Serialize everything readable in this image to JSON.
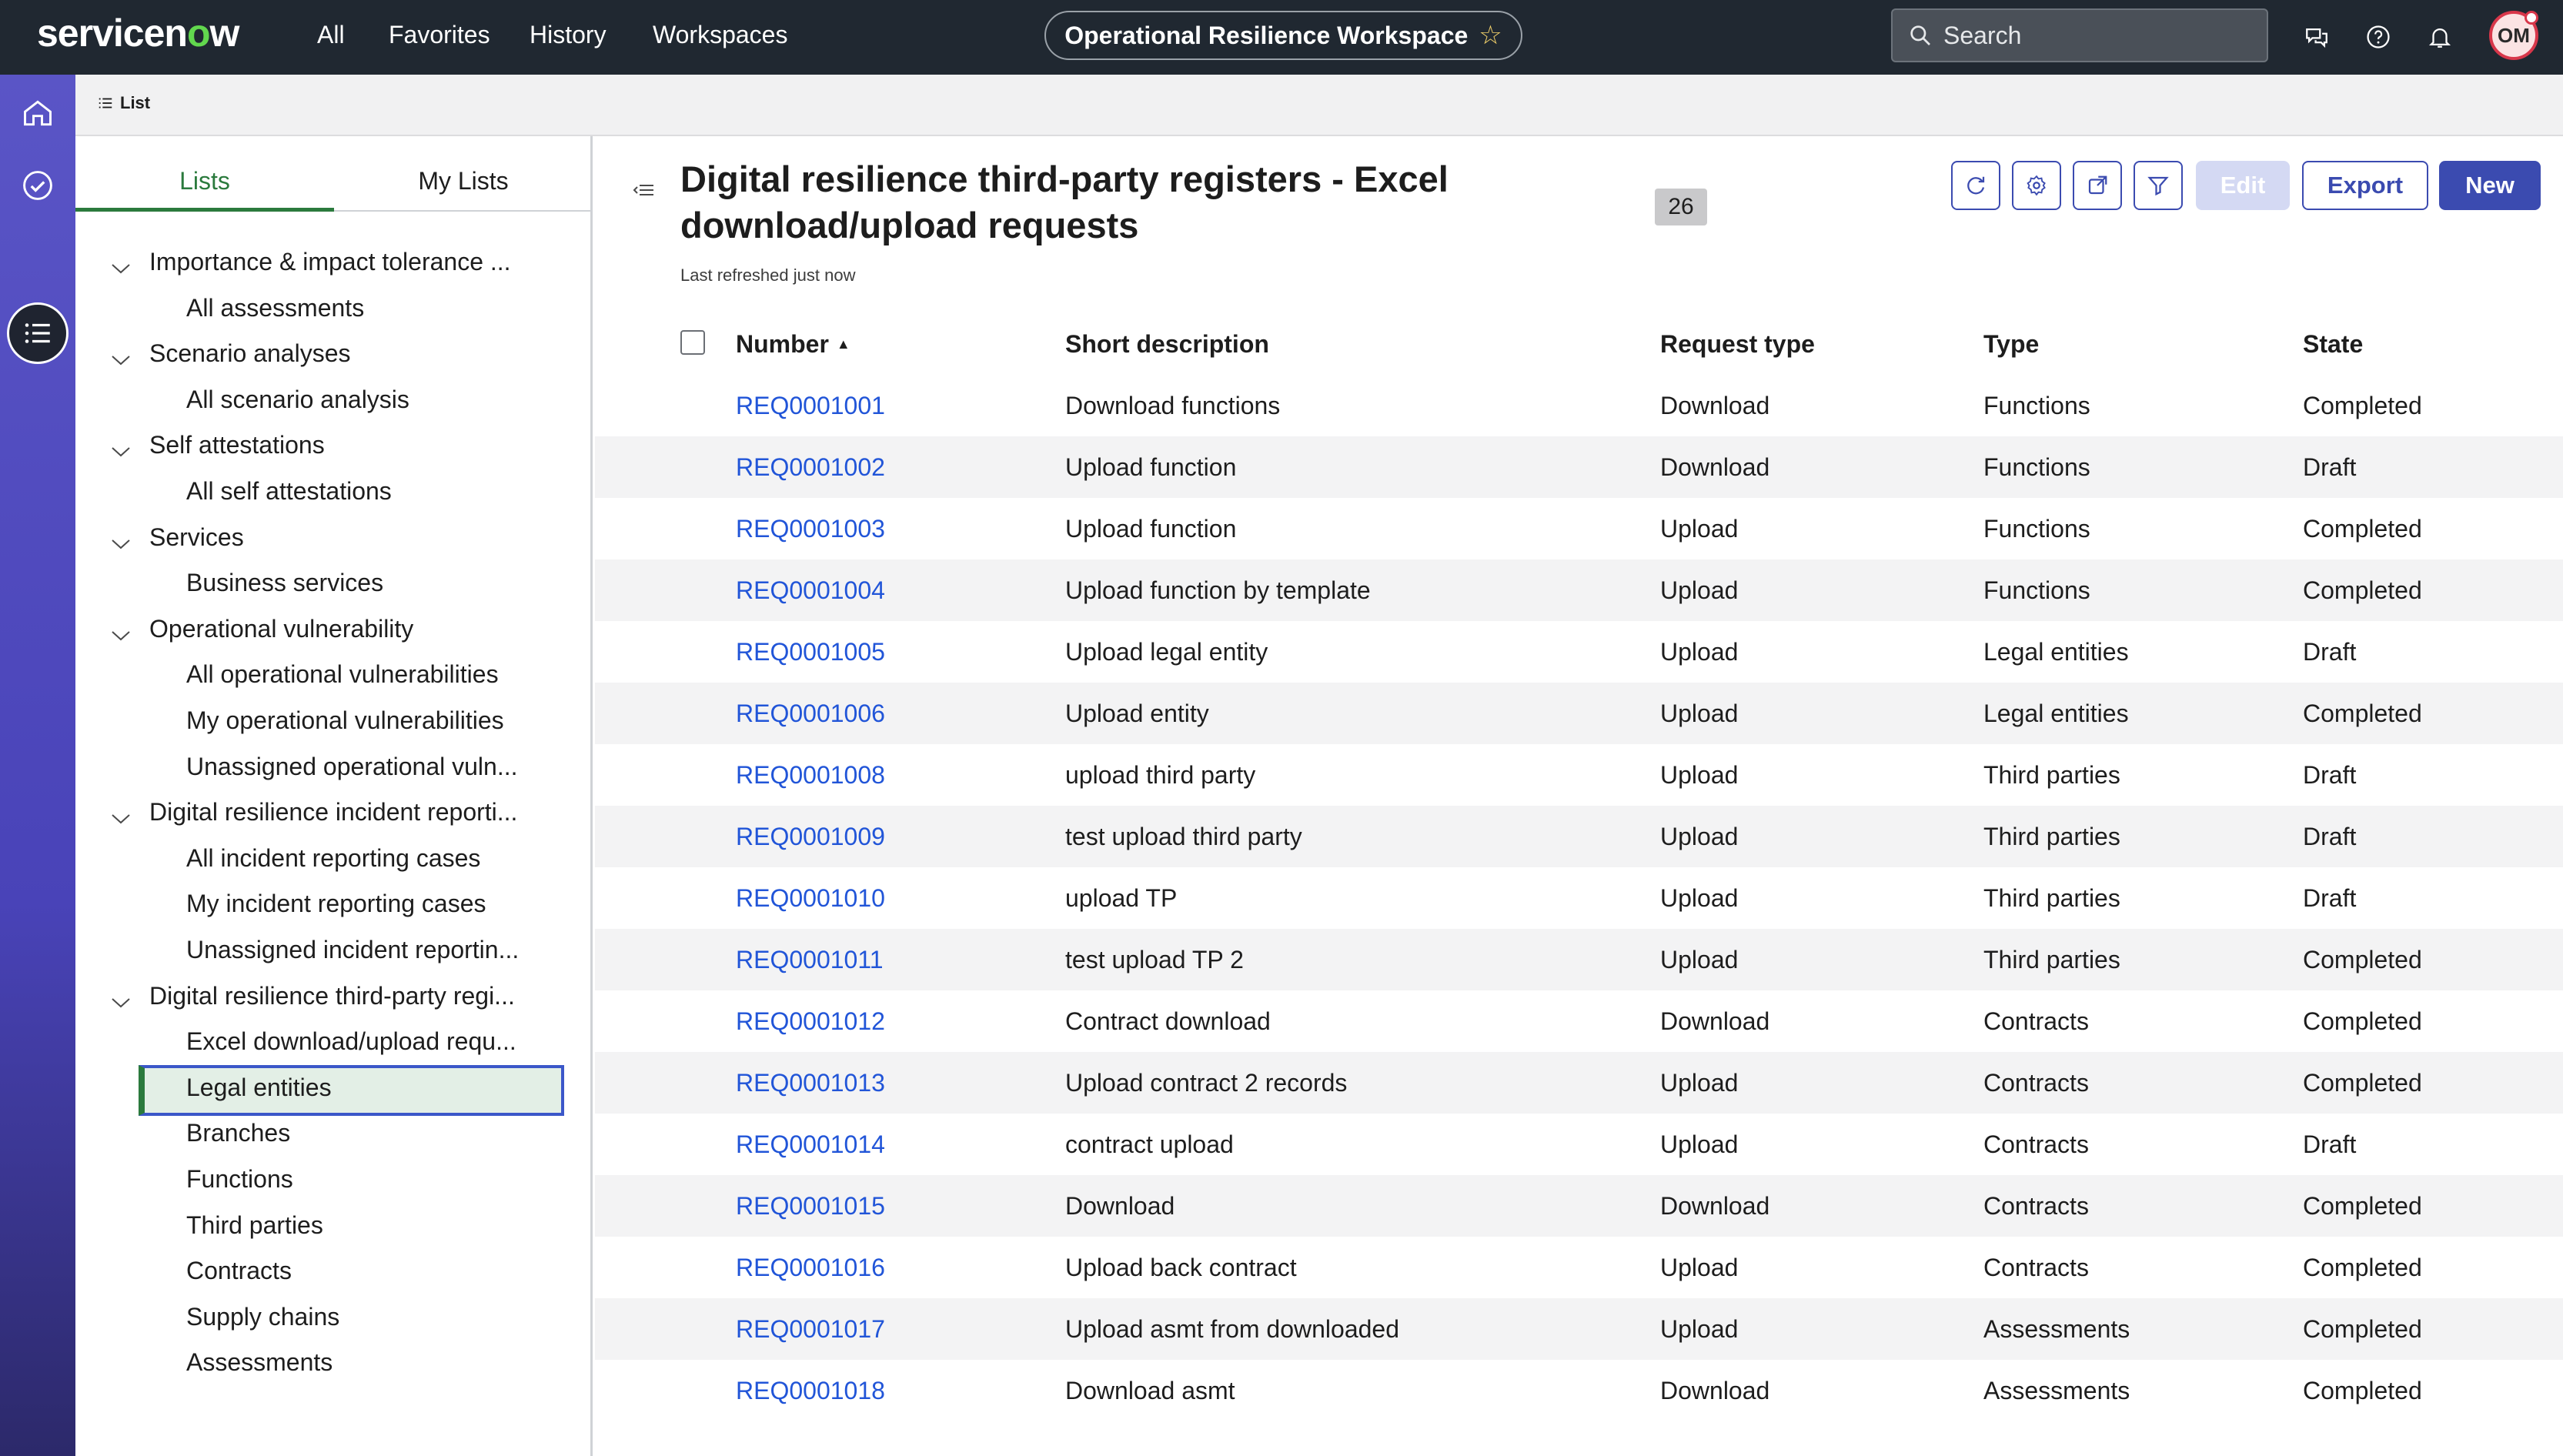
{
  "app": {
    "logo_text_pre": "servicen",
    "logo_text_o": "o",
    "logo_text_post": "w",
    "nav": [
      "All",
      "Favorites",
      "History",
      "Workspaces"
    ],
    "workspace_title": "Operational Resilience Workspace",
    "search_placeholder": "Search",
    "avatar_initials": "OM"
  },
  "breadcrumb": {
    "label": "List"
  },
  "sidebar": {
    "tabs": [
      "Lists",
      "My Lists"
    ],
    "active_tab": "Lists",
    "tree": [
      {
        "kind": "group",
        "label": "Importance & impact tolerance ..."
      },
      {
        "kind": "leaf",
        "label": "All assessments"
      },
      {
        "kind": "group",
        "label": "Scenario analyses"
      },
      {
        "kind": "leaf",
        "label": "All scenario analysis"
      },
      {
        "kind": "group",
        "label": "Self attestations"
      },
      {
        "kind": "leaf",
        "label": "All self attestations"
      },
      {
        "kind": "group",
        "label": "Services"
      },
      {
        "kind": "leaf",
        "label": "Business services"
      },
      {
        "kind": "group",
        "label": "Operational vulnerability"
      },
      {
        "kind": "leaf",
        "label": "All operational vulnerabilities"
      },
      {
        "kind": "leaf",
        "label": "My operational vulnerabilities"
      },
      {
        "kind": "leaf",
        "label": "Unassigned operational vuln..."
      },
      {
        "kind": "group",
        "label": "Digital resilience incident reporti..."
      },
      {
        "kind": "leaf",
        "label": "All incident reporting cases"
      },
      {
        "kind": "leaf",
        "label": "My incident reporting cases"
      },
      {
        "kind": "leaf",
        "label": "Unassigned incident reportin..."
      },
      {
        "kind": "group",
        "label": "Digital resilience third-party regi..."
      },
      {
        "kind": "leaf",
        "label": "Excel download/upload requ...",
        "selected": true
      },
      {
        "kind": "leaf",
        "label": "Legal entities"
      },
      {
        "kind": "leaf",
        "label": "Branches"
      },
      {
        "kind": "leaf",
        "label": "Functions"
      },
      {
        "kind": "leaf",
        "label": "Third parties"
      },
      {
        "kind": "leaf",
        "label": "Contracts"
      },
      {
        "kind": "leaf",
        "label": "Supply chains"
      },
      {
        "kind": "leaf",
        "label": "Assessments"
      }
    ]
  },
  "list": {
    "title": "Digital resilience third-party registers - Excel download/upload requests",
    "count": "26",
    "refreshed": "Last refreshed just now",
    "buttons": {
      "edit": "Edit",
      "export": "Export",
      "new": "New"
    },
    "columns": [
      "Number",
      "Short description",
      "Request type",
      "Type",
      "State"
    ],
    "sort_indicator": "▲",
    "rows": [
      [
        "REQ0001001",
        "Download functions",
        "Download",
        "Functions",
        "Completed"
      ],
      [
        "REQ0001002",
        "Upload function",
        "Download",
        "Functions",
        "Draft"
      ],
      [
        "REQ0001003",
        "Upload function",
        "Upload",
        "Functions",
        "Completed"
      ],
      [
        "REQ0001004",
        "Upload function by template",
        "Upload",
        "Functions",
        "Completed"
      ],
      [
        "REQ0001005",
        "Upload legal entity",
        "Upload",
        "Legal entities",
        "Draft"
      ],
      [
        "REQ0001006",
        "Upload entity",
        "Upload",
        "Legal entities",
        "Completed"
      ],
      [
        "REQ0001008",
        "upload third party",
        "Upload",
        "Third parties",
        "Draft"
      ],
      [
        "REQ0001009",
        "test upload third party",
        "Upload",
        "Third parties",
        "Draft"
      ],
      [
        "REQ0001010",
        "upload TP",
        "Upload",
        "Third parties",
        "Draft"
      ],
      [
        "REQ0001011",
        "test upload TP 2",
        "Upload",
        "Third parties",
        "Completed"
      ],
      [
        "REQ0001012",
        "Contract download",
        "Download",
        "Contracts",
        "Completed"
      ],
      [
        "REQ0001013",
        "Upload contract 2 records",
        "Upload",
        "Contracts",
        "Completed"
      ],
      [
        "REQ0001014",
        "contract upload",
        "Upload",
        "Contracts",
        "Draft"
      ],
      [
        "REQ0001015",
        "Download",
        "Download",
        "Contracts",
        "Completed"
      ],
      [
        "REQ0001016",
        "Upload back contract",
        "Upload",
        "Contracts",
        "Completed"
      ],
      [
        "REQ0001017",
        "Upload asmt from downloaded",
        "Upload",
        "Assessments",
        "Completed"
      ],
      [
        "REQ0001018",
        "Download asmt",
        "Download",
        "Assessments",
        "Completed"
      ]
    ]
  },
  "colors": {
    "topbar": "#202831",
    "rail": "#5a55c6",
    "accent_green": "#2b7a3d",
    "primary": "#3b4bb0",
    "link": "#2155d8"
  }
}
